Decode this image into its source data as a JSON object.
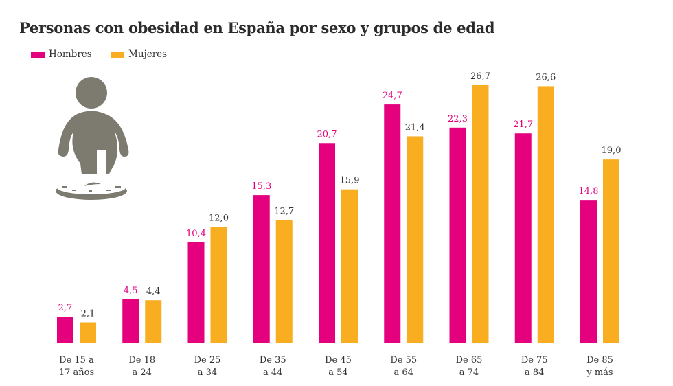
{
  "chart_data": {
    "type": "bar",
    "title": "Personas con obesidad en España por sexo y grupos de edad",
    "categories": [
      [
        "De 15 a",
        "17 años"
      ],
      [
        "De 18",
        "a 24"
      ],
      [
        "De 25",
        "a 34"
      ],
      [
        "De 35",
        "a 44"
      ],
      [
        "De 45",
        "a 54"
      ],
      [
        "De 55",
        "a 64"
      ],
      [
        "De 65",
        "a 74"
      ],
      [
        "De 75",
        "a 84"
      ],
      [
        "De 85",
        "y más"
      ]
    ],
    "series": [
      {
        "name": "Hombres",
        "color": "#e5007e",
        "values": [
          2.7,
          4.5,
          10.4,
          15.3,
          20.7,
          24.7,
          22.3,
          21.7,
          14.8
        ],
        "labels": [
          "2,7",
          "4,5",
          "10,4",
          "15,3",
          "20,7",
          "24,7",
          "22,3",
          "21,7",
          "14,8"
        ]
      },
      {
        "name": "Mujeres",
        "color": "#f9ae22",
        "values": [
          2.1,
          4.4,
          12.0,
          12.7,
          15.9,
          21.4,
          26.7,
          26.6,
          19.0
        ],
        "labels": [
          "2,1",
          "4,4",
          "12,0",
          "12,7",
          "15,9",
          "21,4",
          "26,7",
          "26,6",
          "19,0"
        ]
      }
    ],
    "ylim": [
      0,
      27
    ],
    "grid": false,
    "legend": "top-left",
    "icon": "obese-person-on-scale-icon",
    "icon_color": "#7d7b70",
    "axis_color": "#b8d0dc"
  }
}
